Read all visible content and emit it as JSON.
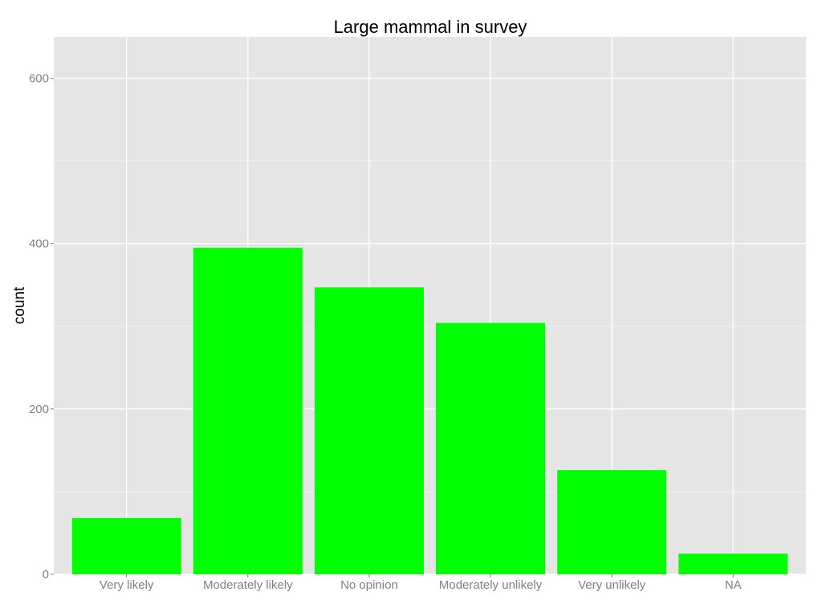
{
  "chart_data": {
    "type": "bar",
    "title": "Large mammal  in survey",
    "xlabel": "",
    "ylabel": "count",
    "categories": [
      "Very likely",
      "Moderately likely",
      "No opinion",
      "Moderately unlikely",
      "Very unlikely",
      "NA"
    ],
    "values": [
      68,
      395,
      347,
      304,
      126,
      25
    ],
    "ylim": [
      0,
      650
    ],
    "yticks": [
      0,
      200,
      400,
      600
    ],
    "ytick_labels": [
      "0",
      "200",
      "400",
      "600"
    ],
    "grid": true,
    "legend": "none",
    "colors": {
      "bar": "#00ff00",
      "panel": "#e5e5e5",
      "grid_major": "#ffffff",
      "grid_minor": "#f2f2f2"
    }
  }
}
